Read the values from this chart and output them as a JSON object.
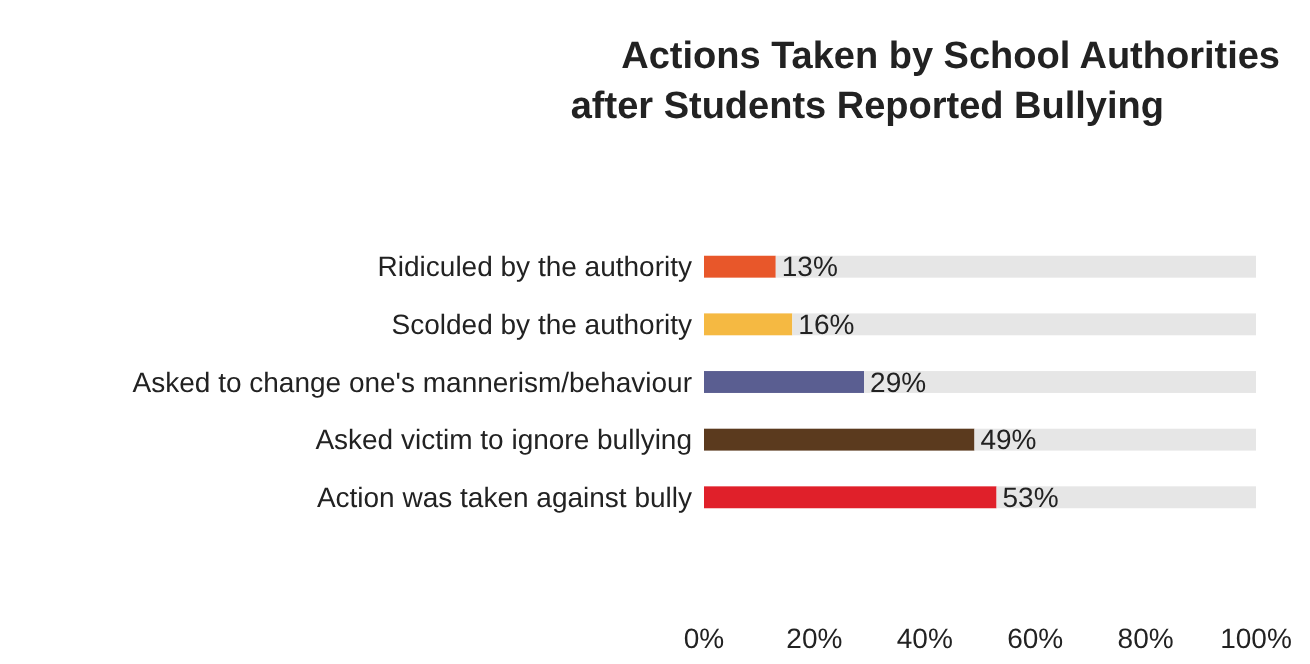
{
  "chart_data": {
    "type": "bar",
    "orientation": "horizontal",
    "stacked": true,
    "title": "Actions Taken by School Authorities\nafter Students Reported Bullying",
    "categories": [
      "Ridiculed by the authority",
      "Scolded by the authority",
      "Asked to change one's mannerism/behaviour",
      "Asked victim to ignore bullying",
      "Action was taken against bully"
    ],
    "series": [
      {
        "colors": [
          "#e8572a",
          "#f5b942",
          "#5a5e91",
          "#5b3a1e",
          "#e0202a"
        ],
        "values": [
          13,
          16,
          29,
          49,
          53
        ],
        "value_labels": [
          "13%",
          "16%",
          "29%",
          "49%",
          "53%"
        ]
      },
      {
        "color": "#e6e6e6",
        "values": [
          87,
          84,
          71,
          51,
          47
        ]
      }
    ],
    "xlim": [
      0,
      100
    ],
    "xticks": [
      {
        "value": 0,
        "label": "0%"
      },
      {
        "value": 20,
        "label": "20%"
      },
      {
        "value": 40,
        "label": "40%"
      },
      {
        "value": 60,
        "label": "60%"
      },
      {
        "value": 80,
        "label": "80%"
      },
      {
        "value": 100,
        "label": "100%"
      }
    ]
  }
}
